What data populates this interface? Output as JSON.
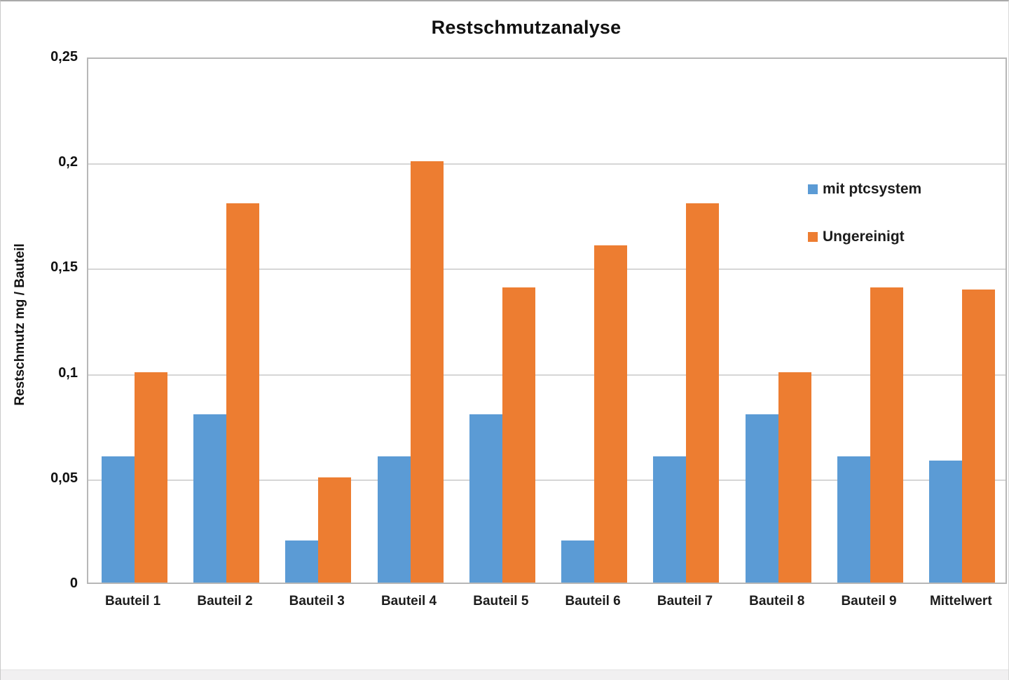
{
  "chart_data": {
    "type": "bar",
    "title": "Restschmutzanalyse",
    "ylabel": "Restschmutz mg / Bauteil",
    "xlabel": "",
    "categories": [
      "Bauteil 1",
      "Bauteil 2",
      "Bauteil 3",
      "Bauteil 4",
      "Bauteil 5",
      "Bauteil 6",
      "Bauteil 7",
      "Bauteil 8",
      "Bauteil 9",
      "Mittelwert"
    ],
    "series": [
      {
        "name": "mit ptcsystem",
        "color": "#5B9BD5",
        "values": [
          0.06,
          0.08,
          0.02,
          0.06,
          0.08,
          0.02,
          0.06,
          0.08,
          0.06,
          0.058
        ]
      },
      {
        "name": "Ungereinigt",
        "color": "#ED7D31",
        "values": [
          0.1,
          0.18,
          0.05,
          0.2,
          0.14,
          0.16,
          0.18,
          0.1,
          0.14,
          0.139
        ]
      }
    ],
    "ylim": [
      0,
      0.25
    ],
    "yticks": [
      {
        "value": 0,
        "label": "0"
      },
      {
        "value": 0.05,
        "label": "0,05"
      },
      {
        "value": 0.1,
        "label": "0,1"
      },
      {
        "value": 0.15,
        "label": "0,15"
      },
      {
        "value": 0.2,
        "label": "0,2"
      },
      {
        "value": 0.25,
        "label": "0,25"
      }
    ],
    "grid": "horizontal",
    "legend_position": "upper-right-inside"
  }
}
